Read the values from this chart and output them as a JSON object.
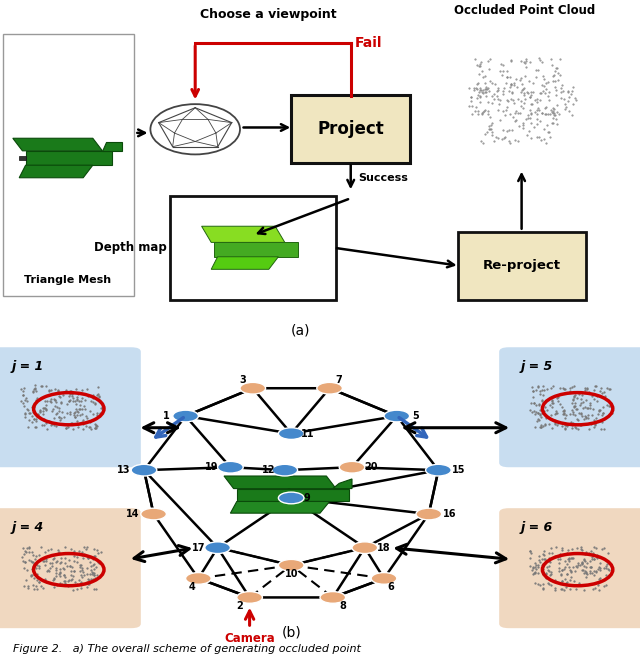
{
  "fig_width": 6.4,
  "fig_height": 6.65,
  "dpi": 100,
  "bg_color": "#ffffff",
  "colors": {
    "blue_node": "#4488cc",
    "peach_node": "#e8a878",
    "red": "#cc0000",
    "box_fill": "#f0e6c0",
    "box_edge": "#111111",
    "blue_arrow": "#3366bb",
    "j1_bg": "#c8ddf0",
    "j4_bg": "#f0d8c0",
    "j5_bg": "#c8ddf0",
    "j6_bg": "#f0d8c0"
  },
  "part_a": {
    "label": "(a)",
    "mesh_label": "Triangle Mesh",
    "viewpoint_text": "Choose a viewpoint",
    "project_label": "Project",
    "depth_label": "Depth map",
    "reproject_label": "Re-project",
    "occ_label": "Occluded Point Cloud",
    "fail_label": "Fail",
    "success_label": "Success"
  },
  "part_b": {
    "label": "(b)",
    "camera_label": "Camera",
    "j1_label": "j = 1",
    "j4_label": "j = 4",
    "j5_label": "j = 5",
    "j6_label": "j = 6"
  },
  "caption": "Figure 2.   a) The overall scheme of generating occluded point"
}
